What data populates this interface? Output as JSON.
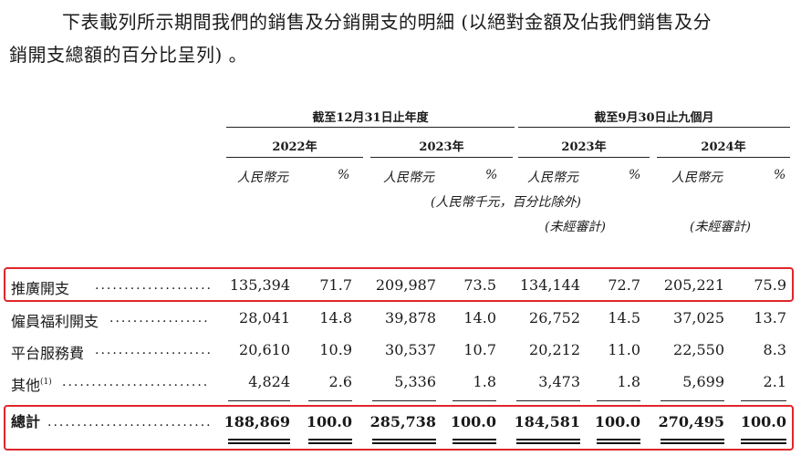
{
  "intro": {
    "line1": "下表載列所示期間我們的銷售及分銷開支的明細 (以絕對金額及佔我們銷售及分",
    "line2": "銷開支總額的百分比呈列) 。"
  },
  "header": {
    "group_year": "截至12月31日止年度",
    "group_nine": "截至9月30日止九個月",
    "periods": [
      "2022年",
      "2023年",
      "2023年",
      "2024年"
    ],
    "unit_rmb": "人民幣元",
    "unit_pct": "%",
    "note_thousand": "(人民幣千元，百分比除外)",
    "unaudited": "(未經審計)"
  },
  "table": {
    "rows": [
      {
        "label": "推廣開支",
        "sup": "",
        "values": [
          "135,394",
          "71.7",
          "209,987",
          "73.5",
          "134,144",
          "72.7",
          "205,221",
          "75.9"
        ],
        "highlight": true
      },
      {
        "label": "僱員福利開支",
        "sup": "",
        "values": [
          "28,041",
          "14.8",
          "39,878",
          "14.0",
          "26,752",
          "14.5",
          "37,025",
          "13.7"
        ],
        "highlight": false
      },
      {
        "label": "平台服務費",
        "sup": "",
        "values": [
          "20,610",
          "10.9",
          "30,537",
          "10.7",
          "20,212",
          "11.0",
          "22,550",
          "8.3"
        ],
        "highlight": false
      },
      {
        "label": "其他",
        "sup": "(1)",
        "values": [
          "4,824",
          "2.6",
          "5,336",
          "1.8",
          "3,473",
          "1.8",
          "5,699",
          "2.1"
        ],
        "highlight": false
      }
    ],
    "total": {
      "label": "總計",
      "values": [
        "188,869",
        "100.0",
        "285,738",
        "100.0",
        "184,581",
        "100.0",
        "270,495",
        "100.0"
      ]
    }
  },
  "colors": {
    "highlight_box": "#e0262b"
  }
}
